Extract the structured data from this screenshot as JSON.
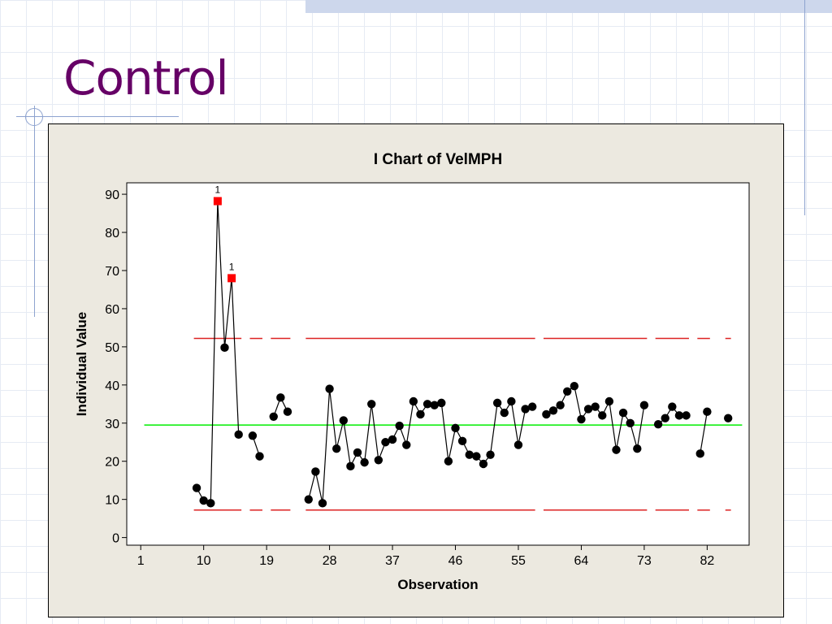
{
  "slide": {
    "title": "Control"
  },
  "chart_data": {
    "type": "line",
    "title": "I Chart of VelMPH",
    "xlabel": "Observation",
    "ylabel": "Individual Value",
    "xlim": [
      -1,
      88
    ],
    "ylim": [
      -2,
      93
    ],
    "x_ticks": [
      1,
      10,
      19,
      28,
      37,
      46,
      55,
      64,
      73,
      82
    ],
    "y_ticks": [
      0,
      10,
      20,
      30,
      40,
      50,
      60,
      70,
      80,
      90
    ],
    "center_line": 29.5,
    "ucl": 52.2,
    "lcl": 7.2,
    "colors": {
      "data": "#000000",
      "center": "#00ee00",
      "limits": "#dd2222",
      "flag": "#ff0000"
    },
    "series": [
      {
        "points": [
          {
            "x": 9,
            "y": 13
          },
          {
            "x": 10,
            "y": 9.7
          },
          {
            "x": 11,
            "y": 9
          },
          {
            "x": 12,
            "y": 88.2
          },
          {
            "x": 13,
            "y": 49.8
          },
          {
            "x": 14,
            "y": 68
          },
          {
            "x": 15,
            "y": 27
          },
          null,
          {
            "x": 17,
            "y": 26.7
          },
          {
            "x": 18,
            "y": 21.3
          },
          null,
          {
            "x": 20,
            "y": 31.7
          },
          {
            "x": 21,
            "y": 36.7
          },
          {
            "x": 22,
            "y": 33
          },
          null,
          {
            "x": 25,
            "y": 10
          },
          {
            "x": 26,
            "y": 17.3
          },
          {
            "x": 27,
            "y": 9
          },
          {
            "x": 28,
            "y": 39
          },
          {
            "x": 29,
            "y": 23.3
          },
          {
            "x": 30,
            "y": 30.7
          },
          {
            "x": 31,
            "y": 18.7
          },
          {
            "x": 32,
            "y": 22.3
          },
          {
            "x": 33,
            "y": 19.7
          },
          {
            "x": 34,
            "y": 35
          },
          {
            "x": 35,
            "y": 20.3
          },
          {
            "x": 36,
            "y": 25
          },
          {
            "x": 37,
            "y": 25.7
          },
          {
            "x": 38,
            "y": 29.3
          },
          {
            "x": 39,
            "y": 24.3
          },
          {
            "x": 40,
            "y": 35.7
          },
          {
            "x": 41,
            "y": 32.3
          },
          {
            "x": 42,
            "y": 35
          },
          {
            "x": 43,
            "y": 34.7
          },
          {
            "x": 44,
            "y": 35.3
          },
          {
            "x": 45,
            "y": 20
          },
          {
            "x": 46,
            "y": 28.7
          },
          {
            "x": 47,
            "y": 25.3
          },
          {
            "x": 48,
            "y": 21.7
          },
          {
            "x": 49,
            "y": 21.3
          },
          {
            "x": 50,
            "y": 19.3
          },
          {
            "x": 51,
            "y": 21.7
          },
          {
            "x": 52,
            "y": 35.3
          },
          {
            "x": 53,
            "y": 32.7
          },
          {
            "x": 54,
            "y": 35.7
          },
          {
            "x": 55,
            "y": 24.3
          },
          {
            "x": 56,
            "y": 33.7
          },
          {
            "x": 57,
            "y": 34.3
          },
          null,
          {
            "x": 59,
            "y": 32.3
          },
          {
            "x": 60,
            "y": 33.3
          },
          {
            "x": 61,
            "y": 34.7
          },
          {
            "x": 62,
            "y": 38.3
          },
          {
            "x": 63,
            "y": 39.7
          },
          {
            "x": 64,
            "y": 31
          },
          {
            "x": 65,
            "y": 33.7
          },
          {
            "x": 66,
            "y": 34.3
          },
          {
            "x": 67,
            "y": 32
          },
          {
            "x": 68,
            "y": 35.7
          },
          {
            "x": 69,
            "y": 23
          },
          {
            "x": 70,
            "y": 32.7
          },
          {
            "x": 71,
            "y": 30
          },
          {
            "x": 72,
            "y": 23.3
          },
          {
            "x": 73,
            "y": 34.7
          },
          null,
          {
            "x": 75,
            "y": 29.7
          },
          {
            "x": 76,
            "y": 31.3
          },
          {
            "x": 77,
            "y": 34.3
          },
          {
            "x": 78,
            "y": 32
          },
          {
            "x": 79,
            "y": 32
          },
          null,
          {
            "x": 81,
            "y": 22
          },
          {
            "x": 82,
            "y": 33
          },
          null,
          {
            "x": 85,
            "y": 31.3
          }
        ]
      }
    ],
    "flagged": [
      {
        "x": 12,
        "y": 88.2,
        "label": "1"
      },
      {
        "x": 14,
        "y": 68,
        "label": "1"
      }
    ]
  }
}
